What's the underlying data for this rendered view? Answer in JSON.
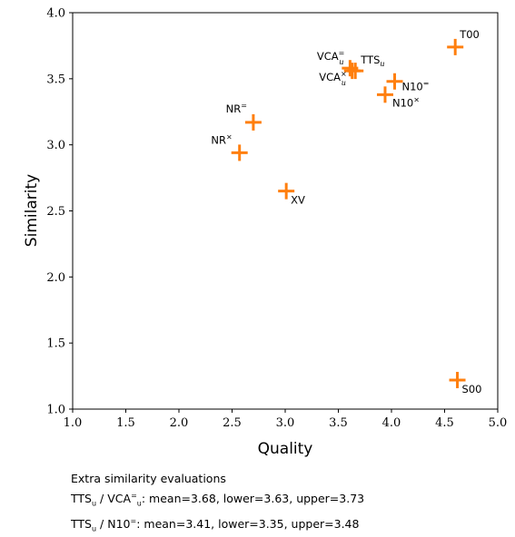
{
  "chart_data": {
    "type": "scatter",
    "xlabel": "Quality",
    "ylabel": "Similarity",
    "xlim": [
      1.0,
      5.0
    ],
    "ylim": [
      1.0,
      4.0
    ],
    "xticks": [
      "1.0",
      "1.5",
      "2.0",
      "2.5",
      "3.0",
      "3.5",
      "4.0",
      "4.5",
      "5.0"
    ],
    "yticks": [
      "1.0",
      "1.5",
      "2.0",
      "2.5",
      "3.0",
      "3.5",
      "4.0"
    ],
    "marker_color": "#ff7f0e",
    "grid": false,
    "points": [
      {
        "label": "T00",
        "sup": "",
        "sub": "",
        "x": 4.6,
        "y": 3.74
      },
      {
        "label": "VCA",
        "sup": "=",
        "sub": "u",
        "x": 3.61,
        "y": 3.58
      },
      {
        "label": "TTS",
        "sup": "",
        "sub": "u",
        "x": 3.66,
        "y": 3.56
      },
      {
        "label": "VCA",
        "sup": "×",
        "sub": "u",
        "x": 3.63,
        "y": 3.56
      },
      {
        "label": "N10",
        "sup": "=",
        "sub": "",
        "x": 4.03,
        "y": 3.48
      },
      {
        "label": "N10",
        "sup": "×",
        "sub": "",
        "x": 3.94,
        "y": 3.38
      },
      {
        "label": "NR",
        "sup": "=",
        "sub": "",
        "x": 2.7,
        "y": 3.17
      },
      {
        "label": "NR",
        "sup": "×",
        "sub": "",
        "x": 2.57,
        "y": 2.94
      },
      {
        "label": "XV",
        "sup": "",
        "sub": "",
        "x": 3.01,
        "y": 2.65
      },
      {
        "label": "S00",
        "sup": "",
        "sub": "",
        "x": 4.62,
        "y": 1.22
      }
    ]
  },
  "notes": {
    "title": "Extra similarity evaluations",
    "line1": {
      "a": "TTS",
      "a_sub": "u",
      "b": "VCA",
      "b_sub": "u",
      "b_sup": "=",
      "stats": ": mean=3.68, lower=3.63, upper=3.73"
    },
    "line2": {
      "a": "TTS",
      "a_sub": "u",
      "b": "N10",
      "b_sup": "=",
      "stats": ": mean=3.41, lower=3.35, upper=3.48"
    }
  }
}
